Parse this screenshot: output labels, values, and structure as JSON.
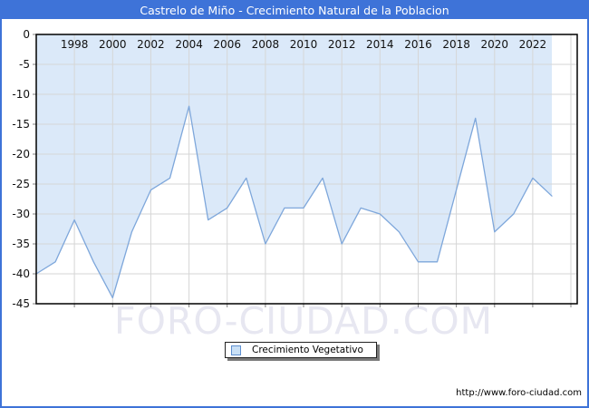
{
  "title_bar": {
    "text": "Castrelo de Miño - Crecimiento Natural de la Poblacion"
  },
  "watermark": {
    "text": "FORO-CIUDAD.COM"
  },
  "legend": {
    "label": "Crecimiento Vegetativo"
  },
  "footer": {
    "url": "http://www.foro-ciudad.com"
  },
  "chart_data": {
    "type": "area",
    "title": "Castrelo de Miño - Crecimiento Natural de la Poblacion",
    "x": [
      1996,
      1997,
      1998,
      1999,
      2000,
      2001,
      2002,
      2003,
      2004,
      2005,
      2006,
      2007,
      2008,
      2009,
      2010,
      2011,
      2012,
      2013,
      2014,
      2015,
      2016,
      2017,
      2018,
      2019,
      2020,
      2021,
      2022,
      2023
    ],
    "series": [
      {
        "name": "Crecimiento Vegetativo",
        "values": [
          -40,
          -38,
          -31,
          -38,
          -44,
          -33,
          -26,
          -24,
          -12,
          -31,
          -29,
          -24,
          -35,
          -29,
          -29,
          -24,
          -35,
          -29,
          -30,
          -33,
          -38,
          -38,
          -26,
          -14,
          -33,
          -30,
          -24,
          -27
        ]
      }
    ],
    "xlabel": "",
    "ylabel": "",
    "ylim": [
      -45,
      0
    ],
    "xlim": [
      1996,
      2024.33
    ],
    "y_ticks": [
      0,
      -5,
      -10,
      -15,
      -20,
      -25,
      -30,
      -35,
      -40,
      -45
    ],
    "x_grid_years": [
      1998,
      2000,
      2002,
      2004,
      2006,
      2008,
      2010,
      2012,
      2014,
      2016,
      2018,
      2020,
      2022,
      2024
    ],
    "x_label_years": [
      1998,
      2000,
      2002,
      2004,
      2006,
      2008,
      2010,
      2012,
      2014,
      2016,
      2018,
      2020,
      2022
    ],
    "grid": true,
    "legend_position": "below-chart",
    "colors": {
      "frame_border": "#3e73d8",
      "title_bg": "#3e73d8",
      "title_text": "#ffffff",
      "area_fill": "#dbe9f9",
      "line": "#7ea7db",
      "gridline": "#d6d6d6",
      "plot_border": "#000000",
      "tick": "#808080",
      "axis_text": "#111111",
      "watermark": "#e7e7f1",
      "legend_swatch_fill": "#c9e0f6",
      "legend_swatch_border": "#5e8fd0"
    }
  }
}
